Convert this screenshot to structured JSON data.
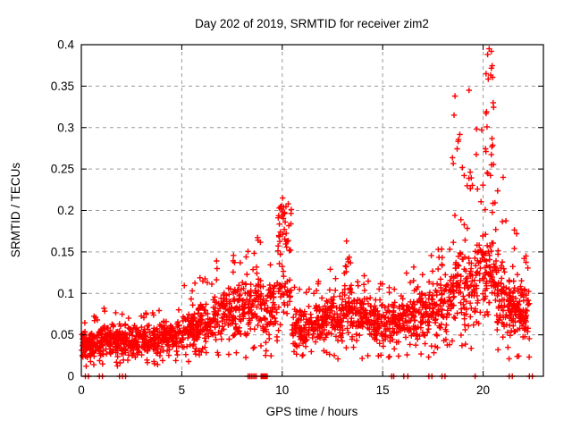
{
  "chart_data": {
    "type": "scatter",
    "title": "Day 202 of 2019, SRMTID for receiver zim2",
    "xlabel": "GPS time / hours",
    "ylabel": "SRMTID / TECUs",
    "xlim": [
      0,
      23
    ],
    "ylim": [
      0,
      0.4
    ],
    "xticks": [
      0,
      5,
      10,
      15,
      20
    ],
    "xtick_labels": [
      "0",
      "5",
      "10",
      "15",
      "20"
    ],
    "yticks": [
      0,
      0.05,
      0.1,
      0.15,
      0.2,
      0.25,
      0.3,
      0.35,
      0.4
    ],
    "ytick_labels": [
      "0",
      "0.05",
      "0.1",
      "0.15",
      "0.2",
      "0.25",
      "0.3",
      "0.35",
      "0.4"
    ],
    "grid": true,
    "grid_color": "#9a9a9a",
    "legend": "none",
    "marker": {
      "symbol": "plus",
      "color": "#ff0000",
      "size": 7
    },
    "series_name": "SRMTID",
    "seed": 1337,
    "density_segments": [
      {
        "x0": 0.0,
        "x1": 0.5,
        "n": 60,
        "lo": 0.018,
        "hi": 0.06,
        "out": 0.072,
        "p": 0.04
      },
      {
        "x0": 0.5,
        "x1": 1.0,
        "n": 60,
        "lo": 0.02,
        "hi": 0.062,
        "out": 0.075,
        "p": 0.04
      },
      {
        "x0": 1.0,
        "x1": 1.5,
        "n": 55,
        "lo": 0.022,
        "hi": 0.066,
        "out": 0.09,
        "p": 0.04
      },
      {
        "x0": 1.5,
        "x1": 2.0,
        "n": 55,
        "lo": 0.022,
        "hi": 0.066,
        "out": 0.095,
        "p": 0.04
      },
      {
        "x0": 2.0,
        "x1": 2.5,
        "n": 50,
        "lo": 0.024,
        "hi": 0.06,
        "out": 0.075,
        "p": 0.03
      },
      {
        "x0": 2.5,
        "x1": 3.0,
        "n": 50,
        "lo": 0.024,
        "hi": 0.062,
        "out": 0.075,
        "p": 0.03
      },
      {
        "x0": 3.0,
        "x1": 4.0,
        "n": 100,
        "lo": 0.026,
        "hi": 0.066,
        "out": 0.082,
        "p": 0.04
      },
      {
        "x0": 4.0,
        "x1": 5.0,
        "n": 100,
        "lo": 0.028,
        "hi": 0.072,
        "out": 0.095,
        "p": 0.04
      },
      {
        "x0": 5.0,
        "x1": 5.8,
        "n": 80,
        "lo": 0.03,
        "hi": 0.082,
        "out": 0.12,
        "p": 0.06
      },
      {
        "x0": 5.8,
        "x1": 6.6,
        "n": 80,
        "lo": 0.035,
        "hi": 0.096,
        "out": 0.128,
        "p": 0.06
      },
      {
        "x0": 6.6,
        "x1": 7.6,
        "n": 95,
        "lo": 0.04,
        "hi": 0.115,
        "out": 0.148,
        "p": 0.07
      },
      {
        "x0": 7.6,
        "x1": 8.3,
        "n": 70,
        "lo": 0.04,
        "hi": 0.12,
        "out": 0.152,
        "p": 0.07
      },
      {
        "x0": 8.3,
        "x1": 9.0,
        "n": 70,
        "lo": 0.045,
        "hi": 0.135,
        "out": 0.168,
        "p": 0.09
      },
      {
        "x0": 9.0,
        "x1": 9.75,
        "n": 70,
        "lo": 0.04,
        "hi": 0.12,
        "out": 0.15,
        "p": 0.06
      },
      {
        "x0": 9.75,
        "x1": 10.05,
        "n": 32,
        "lo": 0.05,
        "hi": 0.14,
        "out": 0.215,
        "p": 0.45
      },
      {
        "x0": 10.05,
        "x1": 10.45,
        "n": 42,
        "lo": 0.05,
        "hi": 0.15,
        "out": 0.21,
        "p": 0.4
      },
      {
        "x0": 10.45,
        "x1": 11.3,
        "n": 80,
        "lo": 0.03,
        "hi": 0.086,
        "out": 0.11,
        "p": 0.05
      },
      {
        "x0": 11.3,
        "x1": 12.2,
        "n": 85,
        "lo": 0.035,
        "hi": 0.092,
        "out": 0.118,
        "p": 0.05
      },
      {
        "x0": 12.2,
        "x1": 13.1,
        "n": 85,
        "lo": 0.04,
        "hi": 0.1,
        "out": 0.13,
        "p": 0.06
      },
      {
        "x0": 13.1,
        "x1": 13.4,
        "n": 34,
        "lo": 0.05,
        "hi": 0.13,
        "out": 0.165,
        "p": 0.35
      },
      {
        "x0": 13.4,
        "x1": 14.5,
        "n": 105,
        "lo": 0.04,
        "hi": 0.1,
        "out": 0.122,
        "p": 0.05
      },
      {
        "x0": 14.5,
        "x1": 15.5,
        "n": 95,
        "lo": 0.035,
        "hi": 0.092,
        "out": 0.112,
        "p": 0.05
      },
      {
        "x0": 15.5,
        "x1": 16.4,
        "n": 85,
        "lo": 0.04,
        "hi": 0.1,
        "out": 0.126,
        "p": 0.06
      },
      {
        "x0": 16.4,
        "x1": 17.3,
        "n": 85,
        "lo": 0.04,
        "hi": 0.11,
        "out": 0.136,
        "p": 0.06
      },
      {
        "x0": 17.3,
        "x1": 18.4,
        "n": 105,
        "lo": 0.045,
        "hi": 0.122,
        "out": 0.162,
        "p": 0.07
      },
      {
        "x0": 18.4,
        "x1": 18.75,
        "n": 40,
        "lo": 0.05,
        "hi": 0.16,
        "out": 0.3,
        "p": 0.15
      },
      {
        "x0": 18.75,
        "x1": 19.15,
        "n": 42,
        "lo": 0.05,
        "hi": 0.172,
        "out": 0.345,
        "p": 0.18
      },
      {
        "x0": 19.15,
        "x1": 19.6,
        "n": 42,
        "lo": 0.05,
        "hi": 0.17,
        "out": 0.27,
        "p": 0.12
      },
      {
        "x0": 19.6,
        "x1": 19.9,
        "n": 32,
        "lo": 0.055,
        "hi": 0.18,
        "out": 0.31,
        "p": 0.15
      },
      {
        "x0": 19.9,
        "x1": 20.2,
        "n": 36,
        "lo": 0.06,
        "hi": 0.2,
        "out": 0.34,
        "p": 0.3
      },
      {
        "x0": 20.2,
        "x1": 20.55,
        "n": 46,
        "lo": 0.06,
        "hi": 0.22,
        "out": 0.395,
        "p": 0.35
      },
      {
        "x0": 20.55,
        "x1": 21.1,
        "n": 65,
        "lo": 0.05,
        "hi": 0.16,
        "out": 0.24,
        "p": 0.09
      },
      {
        "x0": 21.1,
        "x1": 21.7,
        "n": 70,
        "lo": 0.042,
        "hi": 0.125,
        "out": 0.19,
        "p": 0.06
      },
      {
        "x0": 21.7,
        "x1": 22.3,
        "n": 70,
        "lo": 0.04,
        "hi": 0.12,
        "out": 0.155,
        "p": 0.06
      }
    ],
    "peak_points": [
      {
        "x": 10.02,
        "y": 0.215
      },
      {
        "x": 10.3,
        "y": 0.208
      },
      {
        "x": 13.2,
        "y": 0.163
      },
      {
        "x": 18.55,
        "y": 0.315
      },
      {
        "x": 18.6,
        "y": 0.338
      },
      {
        "x": 19.3,
        "y": 0.345
      },
      {
        "x": 20.3,
        "y": 0.395
      },
      {
        "x": 20.15,
        "y": 0.365
      },
      {
        "x": 20.5,
        "y": 0.33
      },
      {
        "x": 21.0,
        "y": 0.24
      }
    ],
    "zero_markers_x": [
      0.2,
      0.35,
      0.9,
      1.05,
      1.9,
      2.05,
      2.2,
      8.3,
      8.38,
      8.46,
      8.54,
      8.62,
      8.7,
      8.95,
      8.98,
      9.01,
      9.04,
      9.07,
      9.1,
      9.13,
      9.16,
      9.19,
      9.22,
      9.25,
      15.45,
      15.55,
      16.05,
      16.25,
      17.3,
      17.45,
      17.95,
      18.1,
      19.6,
      21.3,
      21.45,
      22.3,
      22.45
    ]
  }
}
